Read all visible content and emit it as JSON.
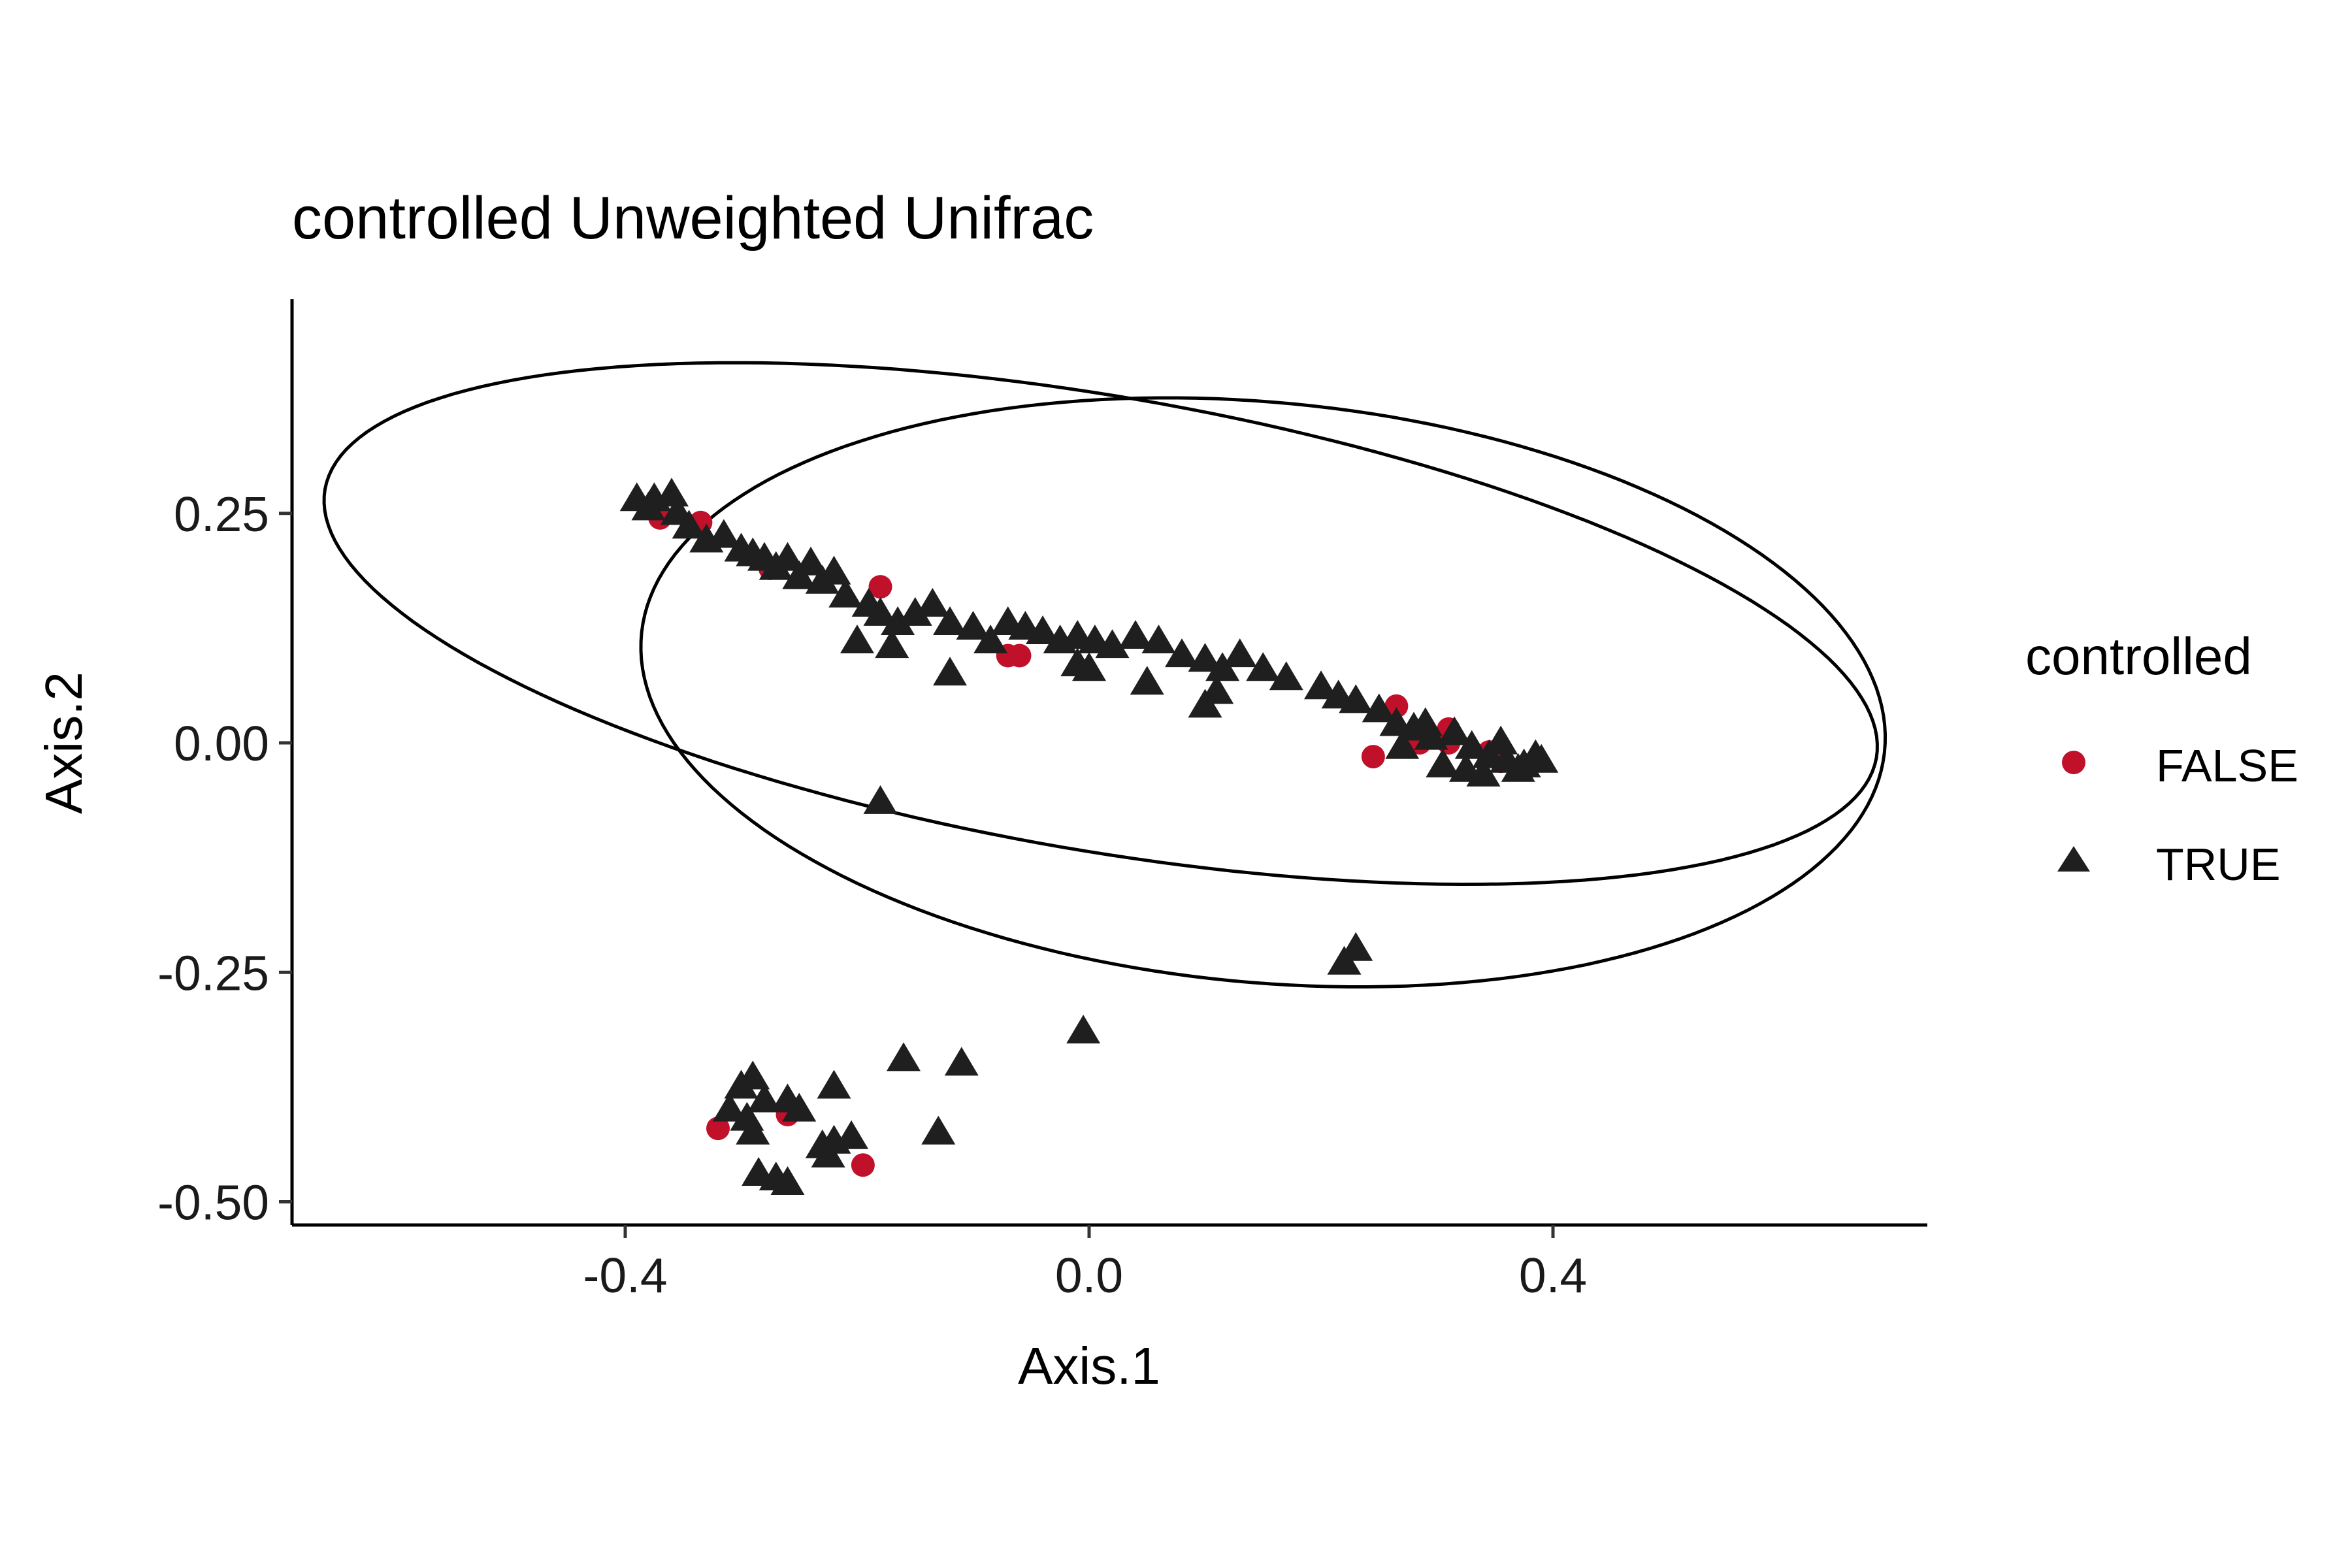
{
  "chart_data": {
    "type": "scatter",
    "title": "controlled Unweighted Unifrac",
    "xlabel": "Axis.1",
    "ylabel": "Axis.2",
    "xlim": [
      -0.69,
      0.72
    ],
    "ylim": [
      -0.53,
      0.48
    ],
    "x_ticks": [
      -0.4,
      0.0,
      0.4
    ],
    "x_tick_labels": [
      "-0.4",
      "0.0",
      "0.4"
    ],
    "y_ticks": [
      0.25,
      0.0,
      -0.25,
      -0.5
    ],
    "y_tick_labels": [
      "0.25",
      "0.00",
      "-0.25",
      "-0.50"
    ],
    "grid": false,
    "legend": {
      "title": "controlled",
      "position": "right",
      "entries": [
        {
          "label": "FALSE",
          "shape": "circle",
          "color": "#c0102a"
        },
        {
          "label": "TRUE",
          "shape": "triangle",
          "color": "#1f1f1f"
        }
      ]
    },
    "series": [
      {
        "name": "FALSE",
        "shape": "circle",
        "color": "#c0102a",
        "points": [
          [
            -0.37,
            0.245
          ],
          [
            -0.335,
            0.24
          ],
          [
            -0.275,
            0.19
          ],
          [
            -0.18,
            0.17
          ],
          [
            -0.07,
            0.095
          ],
          [
            -0.06,
            0.095
          ],
          [
            0.245,
            -0.015
          ],
          [
            0.265,
            0.04
          ],
          [
            0.285,
            0.0
          ],
          [
            0.31,
            0.015
          ],
          [
            0.31,
            0.0
          ],
          [
            0.345,
            -0.01
          ],
          [
            0.355,
            -0.02
          ],
          [
            -0.32,
            -0.42
          ],
          [
            -0.26,
            -0.405
          ],
          [
            -0.195,
            -0.46
          ]
        ]
      },
      {
        "name": "TRUE",
        "shape": "triangle",
        "color": "#1f1f1f",
        "points": [
          [
            -0.39,
            0.265
          ],
          [
            -0.375,
            0.265
          ],
          [
            -0.36,
            0.27
          ],
          [
            -0.38,
            0.255
          ],
          [
            -0.355,
            0.25
          ],
          [
            -0.345,
            0.235
          ],
          [
            -0.33,
            0.22
          ],
          [
            -0.315,
            0.225
          ],
          [
            -0.3,
            0.21
          ],
          [
            -0.29,
            0.205
          ],
          [
            -0.28,
            0.2
          ],
          [
            -0.27,
            0.19
          ],
          [
            -0.26,
            0.2
          ],
          [
            -0.25,
            0.18
          ],
          [
            -0.24,
            0.195
          ],
          [
            -0.23,
            0.175
          ],
          [
            -0.22,
            0.185
          ],
          [
            -0.21,
            0.16
          ],
          [
            -0.19,
            0.15
          ],
          [
            -0.18,
            0.14
          ],
          [
            -0.165,
            0.13
          ],
          [
            -0.15,
            0.14
          ],
          [
            -0.135,
            0.15
          ],
          [
            -0.12,
            0.13
          ],
          [
            -0.1,
            0.125
          ],
          [
            -0.085,
            0.11
          ],
          [
            -0.07,
            0.13
          ],
          [
            -0.055,
            0.125
          ],
          [
            -0.04,
            0.12
          ],
          [
            -0.025,
            0.11
          ],
          [
            -0.01,
            0.115
          ],
          [
            0.005,
            0.11
          ],
          [
            0.02,
            0.105
          ],
          [
            0.04,
            0.115
          ],
          [
            0.06,
            0.11
          ],
          [
            0.08,
            0.095
          ],
          [
            0.1,
            0.09
          ],
          [
            0.115,
            0.08
          ],
          [
            0.13,
            0.095
          ],
          [
            0.15,
            0.08
          ],
          [
            0.17,
            0.07
          ],
          [
            0.2,
            0.06
          ],
          [
            0.215,
            0.05
          ],
          [
            0.23,
            0.045
          ],
          [
            0.25,
            0.035
          ],
          [
            0.265,
            0.02
          ],
          [
            0.28,
            0.015
          ],
          [
            0.295,
            0.005
          ],
          [
            0.315,
            0.01
          ],
          [
            0.33,
            -0.005
          ],
          [
            0.345,
            -0.015
          ],
          [
            0.36,
            -0.02
          ],
          [
            0.375,
            -0.025
          ],
          [
            0.385,
            -0.015
          ],
          [
            0.39,
            -0.02
          ],
          [
            0.305,
            -0.025
          ],
          [
            0.325,
            -0.03
          ],
          [
            0.34,
            -0.035
          ],
          [
            0.37,
            -0.03
          ],
          [
            0.355,
            0.0
          ],
          [
            0.27,
            -0.005
          ],
          [
            0.29,
            0.02
          ],
          [
            0.05,
            0.065
          ],
          [
            0.0,
            0.08
          ],
          [
            0.1,
            0.04
          ],
          [
            0.11,
            0.055
          ],
          [
            -0.12,
            0.075
          ],
          [
            -0.2,
            0.11
          ],
          [
            -0.17,
            0.105
          ],
          [
            -0.18,
            -0.065
          ],
          [
            -0.01,
            0.085
          ],
          [
            0.22,
            -0.24
          ],
          [
            0.23,
            -0.225
          ],
          [
            -0.005,
            -0.315
          ],
          [
            -0.3,
            -0.375
          ],
          [
            -0.29,
            -0.365
          ],
          [
            -0.31,
            -0.4
          ],
          [
            -0.295,
            -0.41
          ],
          [
            -0.28,
            -0.39
          ],
          [
            -0.29,
            -0.425
          ],
          [
            -0.26,
            -0.39
          ],
          [
            -0.25,
            -0.4
          ],
          [
            -0.22,
            -0.375
          ],
          [
            -0.23,
            -0.44
          ],
          [
            -0.22,
            -0.435
          ],
          [
            -0.205,
            -0.43
          ],
          [
            -0.225,
            -0.45
          ],
          [
            -0.16,
            -0.345
          ],
          [
            -0.11,
            -0.35
          ],
          [
            -0.13,
            -0.425
          ],
          [
            -0.285,
            -0.47
          ],
          [
            -0.27,
            -0.475
          ],
          [
            -0.26,
            -0.48
          ]
        ]
      }
    ],
    "ellipses": [
      {
        "group": "FALSE",
        "center": [
          0.01,
          0.13
        ],
        "semi_major": 0.685,
        "semi_minor": 0.245,
        "angle_deg": -13
      },
      {
        "group": "TRUE",
        "center": [
          0.15,
          0.055
        ],
        "semi_major": 0.54,
        "semi_minor": 0.315,
        "angle_deg": -8
      }
    ]
  }
}
